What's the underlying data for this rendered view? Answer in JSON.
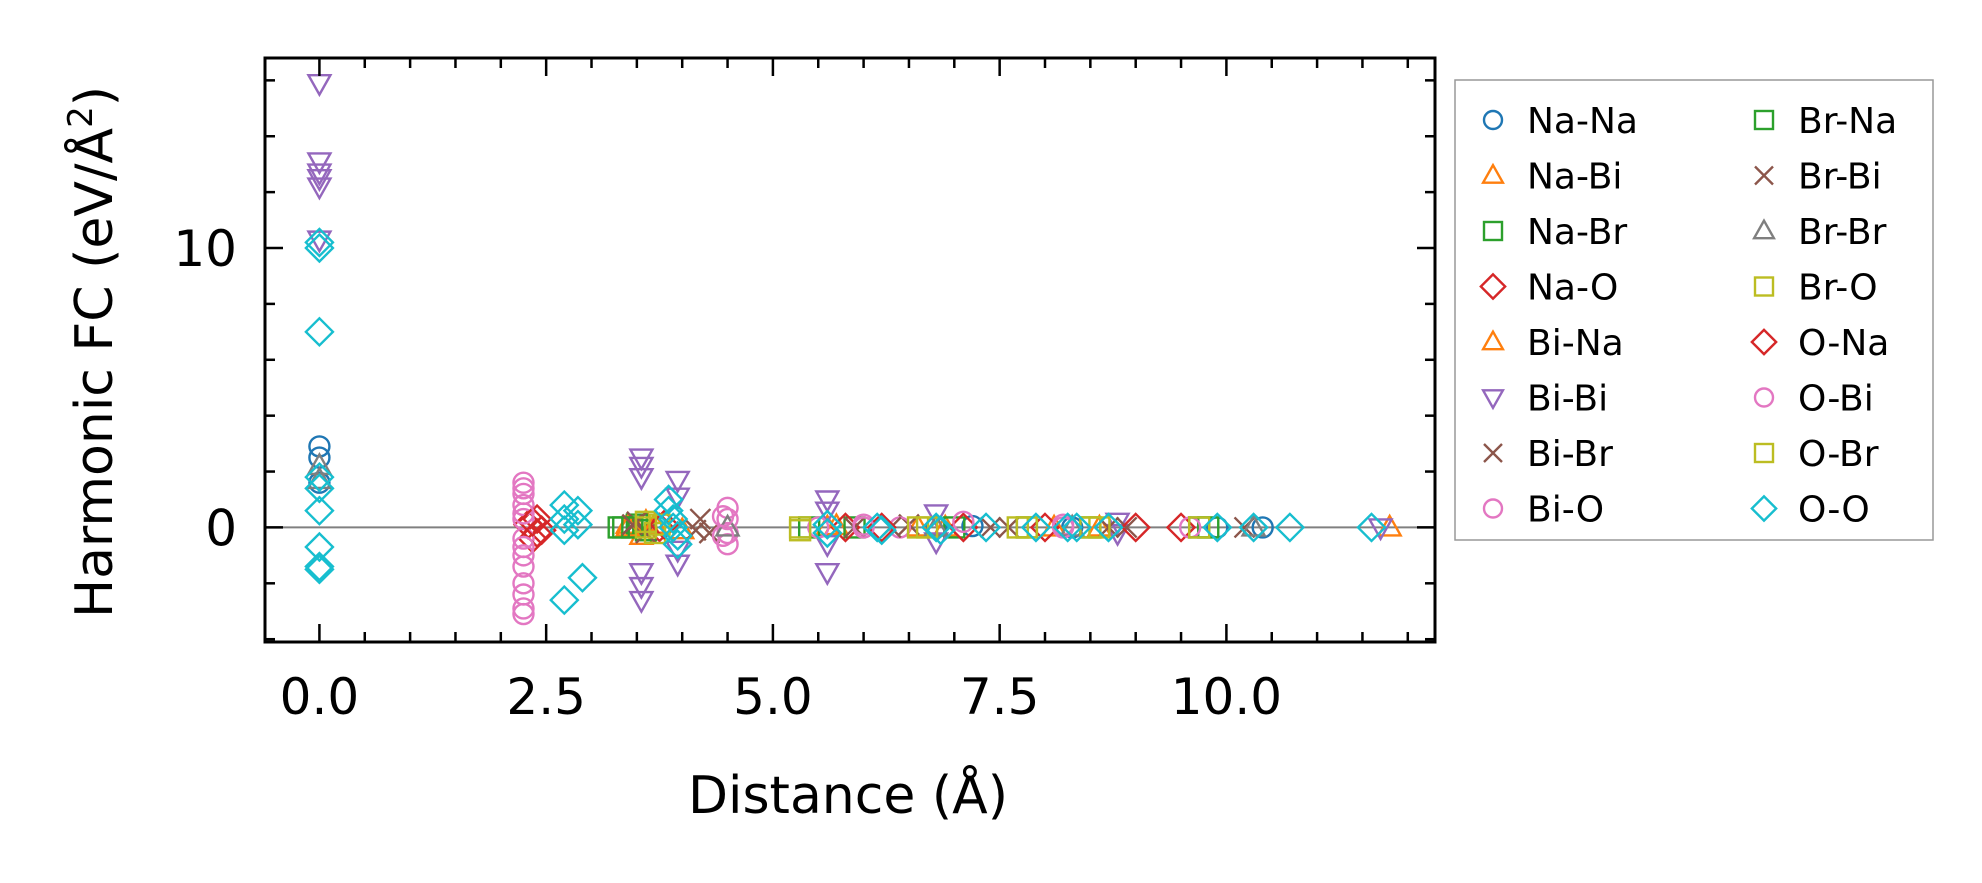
{
  "chart_data": {
    "type": "scatter",
    "title": "",
    "xlabel": "Distance (Å)",
    "ylabel_main": "Harmonic FC (eV/Å",
    "ylabel_sup": "2",
    "ylabel_end": ")",
    "xlim": [
      -0.6,
      12.3
    ],
    "ylim": [
      -4.1,
      16.8
    ],
    "xticks": [
      0.0,
      2.5,
      5.0,
      7.5,
      10.0
    ],
    "xtick_labels": [
      "0.0",
      "2.5",
      "5.0",
      "7.5",
      "10.0"
    ],
    "yticks": [
      0,
      10
    ],
    "ytick_labels": [
      "0",
      "10"
    ],
    "zero_line": true,
    "grid": false,
    "legend_position": "outside-right",
    "series": [
      {
        "name": "Na-Na",
        "marker": "circle",
        "color": "#1f77b4",
        "filled": false,
        "points": [
          [
            0.0,
            2.9
          ],
          [
            0.0,
            2.5
          ],
          [
            0.0,
            1.6
          ],
          [
            6.8,
            0.0
          ],
          [
            7.2,
            0.05
          ],
          [
            8.3,
            0.0
          ],
          [
            9.9,
            0.0
          ],
          [
            10.4,
            0.0
          ]
        ]
      },
      {
        "name": "Na-Bi",
        "marker": "triangle-up",
        "color": "#ff7f0e",
        "filled": false,
        "points": [
          [
            3.4,
            0.1
          ],
          [
            3.55,
            -0.3
          ],
          [
            3.6,
            0.2
          ],
          [
            4.0,
            -0.1
          ],
          [
            5.7,
            0.05
          ],
          [
            6.9,
            0.0
          ],
          [
            8.1,
            0.0
          ],
          [
            11.8,
            0.0
          ]
        ]
      },
      {
        "name": "Na-Br",
        "marker": "square",
        "color": "#2ca02c",
        "filled": false,
        "points": [
          [
            3.35,
            0.0
          ],
          [
            3.5,
            0.1
          ],
          [
            3.6,
            -0.1
          ],
          [
            5.9,
            0.0
          ],
          [
            7.0,
            0.0
          ],
          [
            8.5,
            0.0
          ],
          [
            9.8,
            0.0
          ]
        ]
      },
      {
        "name": "Na-O",
        "marker": "diamond",
        "color": "#d62728",
        "filled": false,
        "points": [
          [
            2.3,
            0.1
          ],
          [
            2.35,
            -0.4
          ],
          [
            2.4,
            0.3
          ],
          [
            2.45,
            -0.1
          ],
          [
            3.75,
            0.0
          ],
          [
            5.8,
            0.0
          ],
          [
            7.1,
            0.0
          ],
          [
            8.0,
            0.0
          ],
          [
            9.5,
            0.0
          ]
        ]
      },
      {
        "name": "Bi-Na",
        "marker": "triangle-up",
        "color": "#ff7f0e",
        "filled": false,
        "points": [
          [
            3.4,
            0.0
          ],
          [
            3.7,
            0.1
          ],
          [
            5.6,
            0.0
          ],
          [
            6.6,
            0.0
          ],
          [
            8.6,
            0.0
          ]
        ]
      },
      {
        "name": "Bi-Bi",
        "marker": "triangle-down",
        "color": "#9467bd",
        "filled": false,
        "points": [
          [
            0.0,
            15.9
          ],
          [
            0.0,
            13.1
          ],
          [
            0.0,
            12.7
          ],
          [
            0.0,
            12.5
          ],
          [
            0.0,
            12.2
          ],
          [
            0.0,
            10.3
          ],
          [
            3.55,
            2.5
          ],
          [
            3.55,
            2.2
          ],
          [
            3.55,
            1.8
          ],
          [
            3.55,
            -1.6
          ],
          [
            3.55,
            -2.1
          ],
          [
            3.55,
            -2.6
          ],
          [
            3.95,
            1.7
          ],
          [
            3.95,
            1.1
          ],
          [
            3.95,
            -0.8
          ],
          [
            3.95,
            -1.3
          ],
          [
            5.6,
            1.0
          ],
          [
            5.6,
            0.6
          ],
          [
            5.6,
            -0.6
          ],
          [
            5.6,
            -1.6
          ],
          [
            6.8,
            0.5
          ],
          [
            6.8,
            -0.5
          ],
          [
            8.8,
            0.2
          ],
          [
            8.8,
            -0.2
          ],
          [
            11.7,
            0.0
          ]
        ]
      },
      {
        "name": "Bi-Br",
        "marker": "x",
        "color": "#8c564b",
        "filled": false,
        "points": [
          [
            3.5,
            0.2
          ],
          [
            3.6,
            -0.2
          ],
          [
            4.2,
            0.3
          ],
          [
            4.3,
            -0.2
          ],
          [
            5.9,
            0.0
          ],
          [
            6.5,
            0.1
          ],
          [
            7.6,
            0.0
          ],
          [
            8.9,
            0.0
          ],
          [
            10.2,
            0.0
          ]
        ]
      },
      {
        "name": "Bi-O",
        "marker": "circle",
        "color": "#e377c2",
        "filled": false,
        "points": [
          [
            2.25,
            1.6
          ],
          [
            2.25,
            1.2
          ],
          [
            2.25,
            0.8
          ],
          [
            2.25,
            0.3
          ],
          [
            2.25,
            -0.4
          ],
          [
            2.25,
            -1.0
          ],
          [
            2.25,
            -1.4
          ],
          [
            2.25,
            -2.4
          ],
          [
            2.25,
            -2.9
          ],
          [
            2.25,
            -3.1
          ],
          [
            4.5,
            0.7
          ],
          [
            4.5,
            0.3
          ],
          [
            4.5,
            -0.2
          ],
          [
            4.5,
            -0.6
          ],
          [
            6.0,
            0.1
          ],
          [
            6.4,
            0.0
          ],
          [
            7.1,
            0.2
          ],
          [
            8.2,
            0.1
          ],
          [
            9.6,
            0.0
          ]
        ]
      },
      {
        "name": "Br-Na",
        "marker": "square",
        "color": "#2ca02c",
        "filled": false,
        "points": [
          [
            3.3,
            0.0
          ],
          [
            3.45,
            0.0
          ],
          [
            5.4,
            0.0
          ],
          [
            7.8,
            0.0
          ],
          [
            9.7,
            0.0
          ]
        ]
      },
      {
        "name": "Br-Bi",
        "marker": "x",
        "color": "#8c564b",
        "filled": false,
        "points": [
          [
            3.45,
            0.1
          ],
          [
            4.15,
            -0.1
          ],
          [
            6.3,
            0.0
          ],
          [
            7.4,
            0.0
          ],
          [
            8.7,
            0.0
          ]
        ]
      },
      {
        "name": "Br-Br",
        "marker": "triangle-up",
        "color": "#7f7f7f",
        "filled": false,
        "points": [
          [
            0.0,
            2.2
          ],
          [
            0.0,
            1.7
          ],
          [
            4.5,
            0.0
          ],
          [
            6.8,
            0.0
          ],
          [
            8.3,
            0.0
          ],
          [
            10.3,
            0.0
          ]
        ]
      },
      {
        "name": "Br-O",
        "marker": "square",
        "color": "#bcbd22",
        "filled": false,
        "points": [
          [
            3.6,
            0.2
          ],
          [
            3.7,
            -0.2
          ],
          [
            5.3,
            0.0
          ],
          [
            6.6,
            0.0
          ],
          [
            7.7,
            0.0
          ],
          [
            8.6,
            0.0
          ],
          [
            9.7,
            0.0
          ]
        ]
      },
      {
        "name": "O-Na",
        "marker": "diamond",
        "color": "#d62728",
        "filled": false,
        "points": [
          [
            2.35,
            0.2
          ],
          [
            2.4,
            -0.2
          ],
          [
            3.8,
            0.1
          ],
          [
            6.2,
            0.0
          ],
          [
            9.0,
            0.0
          ]
        ]
      },
      {
        "name": "O-Bi",
        "marker": "circle",
        "color": "#e377c2",
        "filled": false,
        "points": [
          [
            2.25,
            1.4
          ],
          [
            2.25,
            0.5
          ],
          [
            2.25,
            -0.7
          ],
          [
            2.25,
            -2.0
          ],
          [
            4.45,
            0.4
          ],
          [
            4.45,
            -0.3
          ],
          [
            5.5,
            0.0
          ],
          [
            6.0,
            0.0
          ],
          [
            8.2,
            0.0
          ]
        ]
      },
      {
        "name": "O-Br",
        "marker": "square",
        "color": "#bcbd22",
        "filled": false,
        "points": [
          [
            3.6,
            0.0
          ],
          [
            3.75,
            0.1
          ],
          [
            5.3,
            -0.1
          ],
          [
            6.7,
            0.0
          ],
          [
            7.8,
            0.0
          ],
          [
            8.5,
            0.0
          ]
        ]
      },
      {
        "name": "O-O",
        "marker": "diamond",
        "color": "#17becf",
        "filled": false,
        "points": [
          [
            0.0,
            10.2
          ],
          [
            0.0,
            10.0
          ],
          [
            0.0,
            7.0
          ],
          [
            0.0,
            1.8
          ],
          [
            0.0,
            1.4
          ],
          [
            0.0,
            0.6
          ],
          [
            0.0,
            -0.7
          ],
          [
            0.0,
            -1.4
          ],
          [
            0.0,
            -1.5
          ],
          [
            2.7,
            0.8
          ],
          [
            2.7,
            0.3
          ],
          [
            2.7,
            -0.1
          ],
          [
            2.7,
            -2.6
          ],
          [
            2.85,
            0.6
          ],
          [
            2.85,
            0.1
          ],
          [
            2.9,
            -1.8
          ],
          [
            3.85,
            1.0
          ],
          [
            3.85,
            0.6
          ],
          [
            3.9,
            0.3
          ],
          [
            3.9,
            0.0
          ],
          [
            3.95,
            -0.3
          ],
          [
            3.95,
            -0.6
          ],
          [
            5.6,
            0.1
          ],
          [
            5.6,
            -0.2
          ],
          [
            6.15,
            0.0
          ],
          [
            6.2,
            -0.1
          ],
          [
            6.8,
            0.0
          ],
          [
            6.85,
            -0.1
          ],
          [
            7.35,
            0.0
          ],
          [
            7.9,
            0.0
          ],
          [
            8.25,
            0.0
          ],
          [
            8.35,
            0.0
          ],
          [
            8.7,
            0.0
          ],
          [
            9.9,
            0.0
          ],
          [
            10.3,
            0.0
          ],
          [
            10.7,
            0.0
          ],
          [
            11.6,
            0.0
          ]
        ]
      }
    ]
  }
}
